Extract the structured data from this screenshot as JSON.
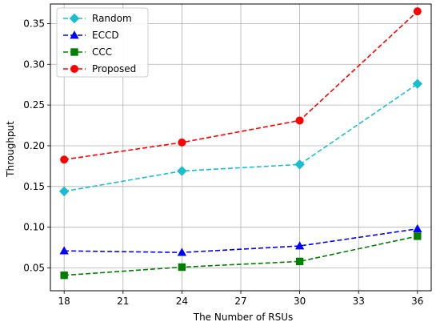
{
  "chart_data": {
    "type": "line",
    "title": "",
    "xlabel": "The Number of RSUs",
    "ylabel": "Throughput",
    "x": [
      18,
      24,
      30,
      36
    ],
    "xlim": [
      17.3,
      36.7
    ],
    "ylim": [
      0.022,
      0.374
    ],
    "xticks": [
      18,
      21,
      24,
      27,
      30,
      33,
      36
    ],
    "yticks": [
      0.05,
      0.1,
      0.15,
      0.2,
      0.25,
      0.3,
      0.35
    ],
    "ytick_labels": [
      "0.05",
      "0.10",
      "0.15",
      "0.20",
      "0.25",
      "0.30",
      "0.35"
    ],
    "grid": true,
    "legend_position": "top-left",
    "series": [
      {
        "name": "Random",
        "values": [
          0.144,
          0.169,
          0.177,
          0.276
        ],
        "color": "#17becf",
        "marker": "diamond",
        "linestyle": "dashed"
      },
      {
        "name": "ECCD",
        "values": [
          0.071,
          0.069,
          0.077,
          0.098
        ],
        "color": "#0000ff",
        "marker": "triangle-up",
        "linestyle": "dashed"
      },
      {
        "name": "CCC",
        "values": [
          0.041,
          0.051,
          0.058,
          0.089
        ],
        "color": "#008000",
        "marker": "square",
        "linestyle": "dashed"
      },
      {
        "name": "Proposed",
        "values": [
          0.183,
          0.204,
          0.231,
          0.365
        ],
        "color": "#ff0000",
        "marker": "circle",
        "linestyle": "dashed"
      }
    ]
  }
}
